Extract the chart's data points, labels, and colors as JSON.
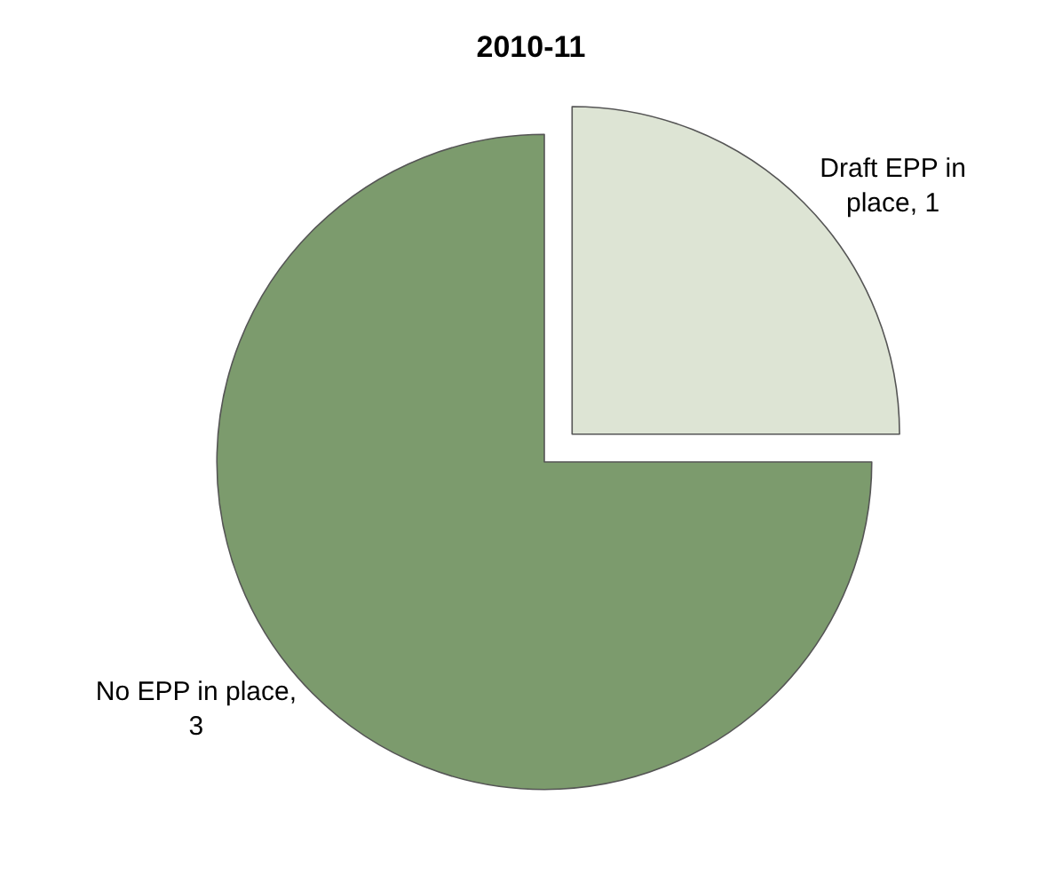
{
  "chart_data": {
    "type": "pie",
    "title": "2010-11",
    "categories": [
      "Draft EPP in place, 1",
      "No EPP in place, 3"
    ],
    "values": [
      1,
      3
    ],
    "colors": [
      "#dde4d4",
      "#7c9b6d"
    ],
    "legend": false
  }
}
